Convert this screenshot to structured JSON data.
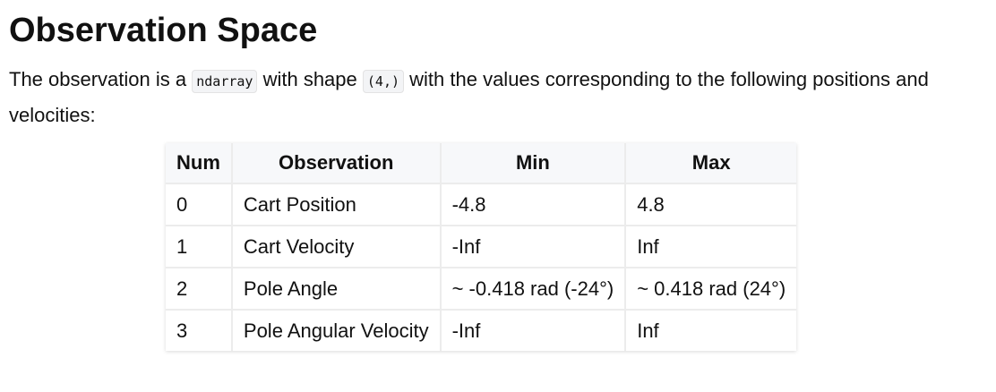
{
  "header": {
    "title": "Observation Space"
  },
  "paragraph": {
    "text_1": "The observation is a",
    "code_1": "ndarray",
    "text_2": "with shape",
    "code_2": "(4,)",
    "text_3": "with the values corresponding to the following positions and velocities:"
  },
  "table": {
    "columns": [
      "Num",
      "Observation",
      "Min",
      "Max"
    ],
    "rows": [
      [
        "0",
        "Cart Position",
        "-4.8",
        "4.8"
      ],
      [
        "1",
        "Cart Velocity",
        "-Inf",
        "Inf"
      ],
      [
        "2",
        "Pole Angle",
        "~ -0.418 rad (-24°)",
        "~ 0.418 rad (24°)"
      ],
      [
        "3",
        "Pole Angular Velocity",
        "-Inf",
        "Inf"
      ]
    ]
  }
}
